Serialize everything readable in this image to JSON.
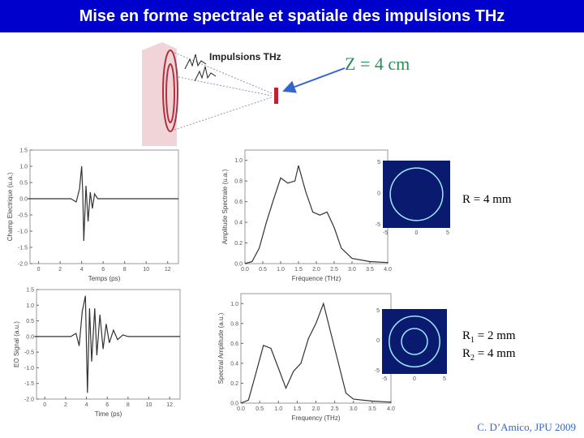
{
  "header": {
    "title": "Mise en forme spectrale et spatiale des impulsions THz"
  },
  "diagram": {
    "label": "Impulsions THz",
    "distance": "Z = 4 cm"
  },
  "chart_data": [
    {
      "type": "line",
      "xlabel": "Temps (ps)",
      "ylabel": "Champ Electrique (u.a.)",
      "x": [
        -1,
        3,
        3.5,
        3.8,
        4.0,
        4.1,
        4.2,
        4.4,
        4.6,
        4.8,
        5.0,
        5.2,
        5.5,
        6,
        7,
        13
      ],
      "series": [
        {
          "color": "#333333",
          "values": [
            0,
            0,
            -0.1,
            0.3,
            1.0,
            0.2,
            -1.3,
            0.4,
            -0.7,
            0.2,
            -0.3,
            0.15,
            0,
            0,
            0,
            0
          ]
        }
      ],
      "xlim": [
        -0.8,
        13
      ],
      "ylim": [
        -2,
        1.5
      ],
      "xticks": [
        0,
        2,
        4,
        6,
        8,
        10,
        12
      ],
      "yticks": [
        {
          "value": -2,
          "label": "-2.0"
        },
        -1.5,
        {
          "value": -1,
          "label": "-1.0"
        },
        -0.5,
        {
          "value": 0,
          "label": "0.0"
        },
        0.5,
        {
          "value": 1,
          "label": "1.0"
        },
        1.5
      ]
    },
    {
      "type": "line",
      "xlabel": "Fréquence (THz)",
      "ylabel": "Amplitude Spectrale (u.a.)",
      "x": [
        0,
        0.2,
        0.4,
        0.6,
        0.8,
        1.0,
        1.2,
        1.4,
        1.5,
        1.7,
        1.9,
        2.1,
        2.3,
        2.5,
        2.7,
        3.0,
        3.5,
        4.0
      ],
      "series": [
        {
          "color": "#333333",
          "values": [
            0,
            0.02,
            0.15,
            0.4,
            0.62,
            0.83,
            0.78,
            0.8,
            0.95,
            0.7,
            0.5,
            0.47,
            0.5,
            0.35,
            0.15,
            0.05,
            0.02,
            0.01
          ]
        }
      ],
      "xlim": [
        0,
        4.0
      ],
      "ylim": [
        0,
        1.1
      ],
      "xticks": [
        {
          "value": 0,
          "label": "0.0"
        },
        0.5,
        {
          "value": 1,
          "label": "1.0"
        },
        1.5,
        {
          "value": 2,
          "label": "2.0"
        },
        2.5,
        {
          "value": 3,
          "label": "3.0"
        },
        3.5,
        {
          "value": 4,
          "label": "4.0"
        }
      ],
      "yticks": [
        {
          "value": 0,
          "label": "0.0"
        },
        0.2,
        0.4,
        0.6,
        0.8,
        {
          "value": 1,
          "label": "1.0"
        }
      ]
    },
    {
      "type": "line",
      "xlabel": "Time (ps)",
      "ylabel": "EO Signal (a.u.)",
      "x": [
        -1,
        2.5,
        3,
        3.3,
        3.6,
        3.9,
        4.1,
        4.3,
        4.5,
        4.8,
        5.0,
        5.3,
        5.6,
        5.9,
        6.2,
        6.6,
        7,
        7.5,
        8,
        9,
        13
      ],
      "series": [
        {
          "color": "#333333",
          "values": [
            0,
            0,
            0.1,
            -0.3,
            0.8,
            1.3,
            -1.8,
            0.9,
            -0.8,
            0.9,
            -0.6,
            0.7,
            -0.4,
            0.4,
            -0.2,
            0.2,
            -0.1,
            0.05,
            0,
            0,
            0
          ]
        }
      ],
      "xlim": [
        -0.8,
        13
      ],
      "ylim": [
        -2,
        1.5
      ],
      "xticks": [
        0,
        2,
        4,
        6,
        8,
        10,
        12
      ],
      "yticks": [
        {
          "value": -2,
          "label": "-2.0"
        },
        -1.5,
        {
          "value": -1,
          "label": "-1.0"
        },
        -0.5,
        {
          "value": 0,
          "label": "0.0"
        },
        0.5,
        {
          "value": 1,
          "label": "1.0"
        },
        1.5
      ]
    },
    {
      "type": "line",
      "xlabel": "Frequency (THz)",
      "ylabel": "Spectral Amplitude (a.u.)",
      "x": [
        0,
        0.2,
        0.4,
        0.6,
        0.8,
        1.0,
        1.2,
        1.4,
        1.6,
        1.8,
        2.0,
        2.2,
        2.4,
        2.6,
        2.8,
        3.0,
        3.5,
        4.0
      ],
      "series": [
        {
          "color": "#333333",
          "values": [
            0,
            0.03,
            0.3,
            0.58,
            0.55,
            0.35,
            0.15,
            0.32,
            0.4,
            0.65,
            0.8,
            1.0,
            0.7,
            0.4,
            0.1,
            0.04,
            0.02,
            0.01
          ]
        }
      ],
      "xlim": [
        0,
        4.0
      ],
      "ylim": [
        0,
        1.1
      ],
      "xticks": [
        {
          "value": 0,
          "label": "0.0"
        },
        0.5,
        {
          "value": 1,
          "label": "1.0"
        },
        1.5,
        {
          "value": 2,
          "label": "2.0"
        },
        2.5,
        {
          "value": 3,
          "label": "3.0"
        },
        3.5,
        {
          "value": 4,
          "label": "4.0"
        }
      ],
      "yticks": [
        {
          "value": 0,
          "label": "0.0"
        },
        0.2,
        0.4,
        0.6,
        0.8,
        {
          "value": 1,
          "label": "1.0"
        }
      ]
    }
  ],
  "images": [
    {
      "xticks": [
        -5,
        0,
        5
      ],
      "yticks": [
        5,
        0,
        -5
      ],
      "caption": [
        {
          "main": "R = 4 mm"
        }
      ]
    },
    {
      "xticks": [
        -5,
        0,
        5
      ],
      "yticks": [
        5,
        0,
        -5
      ],
      "caption": [
        {
          "main": "R",
          "sub": "1",
          "rest": " = 2 mm"
        },
        {
          "main": "R",
          "sub": "2",
          "rest": " = 4 mm"
        }
      ]
    }
  ],
  "footer": {
    "credit": "C. D’Amico, JPU 2009"
  }
}
